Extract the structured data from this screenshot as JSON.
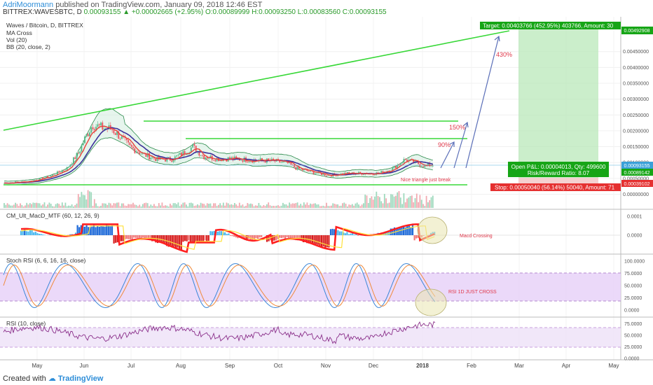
{
  "header": {
    "author": "AdriMoormann",
    "published_text": "published on TradingView.com, January 09, 2018 12:46 EST",
    "symbol_line": "BITTREX:WAVESBTC, D",
    "last_price": "0.00093155",
    "change": "+0.00002665 (+2.95%)",
    "open": "O:0.00089999",
    "high": "H:0.00093250",
    "low": "L:0.00083560",
    "close": "C:0.00093155"
  },
  "legend": {
    "title": "Waves / Bitcoin, D, BITTREX",
    "studies": [
      "MA Cross",
      "Vol (20)",
      "BB (20, close, 2)"
    ]
  },
  "pane_titles": {
    "macd": "CM_Ult_MacD_MTF (60, 12, 26, 9)",
    "stoch": "Stoch RSI (6, 6, 16, 16, close)",
    "rsi": "RSI (10, close)"
  },
  "annotations": {
    "target": "Target: 0.00403766 (452.95%) 403766, Amount: 30",
    "target_price": "0.00492908",
    "open_pnl": "Open P&L: 0.00004013, Qty: 499600",
    "risk_reward": "Risk/Reward Ratio: 8.07",
    "stop": "Stop: 0.00050040 (56.14%) 50040, Amount: 71",
    "last_price_label": "0.00093155",
    "entry_label": "0.00089142",
    "stop_label": "0.00039102",
    "pct_430": "430%",
    "pct_150": "150%",
    "pct_90": "90%",
    "nice_break": "Nice triangle just break",
    "macd_cross": "Macd Crossing",
    "rsi_cross": "RSI 1D JUST CROSS"
  },
  "footer": {
    "prefix": "Created with",
    "brand": "TradingView"
  },
  "colors": {
    "up": "#53b987",
    "down": "#eb4d5c",
    "ma_fast": "#e8413a",
    "ma_slow": "#3b2f9a",
    "bb": "#2a8a4a",
    "trend": "#38d838",
    "target_zone": "#b9e8b9",
    "stop_zone": "#f3c8c8",
    "stoch_band": "#e6d0f8",
    "rsi_band": "#f0e4f8"
  },
  "chart_data": [
    {
      "type": "line",
      "title": "Waves / Bitcoin, D, BITTREX",
      "x_ticks": [
        "May",
        "Jun",
        "Jul",
        "Aug",
        "Sep",
        "Oct",
        "Nov",
        "Dec",
        "2018",
        "Feb",
        "Mar",
        "Apr",
        "May"
      ],
      "y_ticks": [
        "0.00450000",
        "0.00400000",
        "0.00350000",
        "0.00300000",
        "0.00250000",
        "0.00200000",
        "0.00150000",
        "0.00100000",
        "0.00050000",
        "0.00000000"
      ],
      "ylim": [
        -0.0001,
        0.0052
      ],
      "series": [
        {
          "name": "WAVESBTC",
          "x": [
            "May",
            "Jun",
            "Jul",
            "Aug",
            "Sep",
            "Oct",
            "Nov",
            "Dec",
            "2018"
          ],
          "values": [
            0.00035,
            0.0022,
            0.0014,
            0.0015,
            0.0011,
            0.001,
            0.0006,
            0.0007,
            0.00093155
          ]
        }
      ],
      "levels": {
        "last": 0.00093155,
        "entry": 0.00089142,
        "stop": 0.00039102,
        "target": 0.00492908
      }
    },
    {
      "type": "line",
      "title": "CM_Ult_MacD_MTF (60, 12, 26, 9)",
      "y_ticks": [
        "0.0001",
        "0.0000"
      ]
    },
    {
      "type": "line",
      "title": "Stoch RSI (6, 6, 16, 16, close)",
      "y_ticks": [
        "100.0000",
        "75.0000",
        "50.0000",
        "25.0000",
        "0.0000"
      ],
      "ylim": [
        -5,
        105
      ]
    },
    {
      "type": "line",
      "title": "RSI (10, close)",
      "y_ticks": [
        "75.0000",
        "50.0000",
        "25.0000",
        "0.0000"
      ],
      "ylim": [
        0,
        100
      ]
    }
  ]
}
